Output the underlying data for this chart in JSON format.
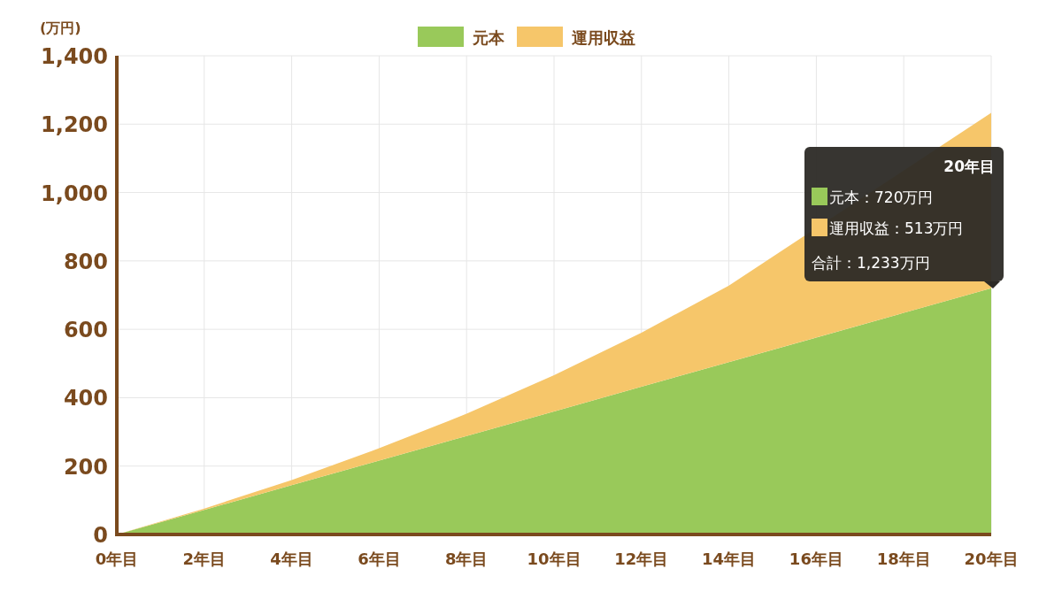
{
  "chart_data": {
    "type": "area",
    "stacked": true,
    "ylabel": "(万円)",
    "categories": [
      "0年目",
      "2年目",
      "4年目",
      "6年目",
      "8年目",
      "10年目",
      "12年目",
      "14年目",
      "16年目",
      "18年目",
      "20年目"
    ],
    "series": [
      {
        "name": "元本",
        "color": "#99c95a",
        "values": [
          0,
          72,
          144,
          216,
          288,
          360,
          432,
          504,
          576,
          648,
          720
        ]
      },
      {
        "name": "運用収益",
        "color": "#f6c66a",
        "values": [
          0,
          4,
          15,
          36,
          65,
          106,
          158,
          224,
          null,
          null,
          513
        ]
      }
    ],
    "ylim": [
      0,
      1400
    ],
    "yticks": [
      0,
      {
        "value": 200,
        "label": "200"
      },
      {
        "value": 400,
        "label": "400"
      },
      {
        "value": 600,
        "label": "600"
      },
      {
        "value": 800,
        "label": "800"
      },
      {
        "value": 1000,
        "label": "1,000"
      },
      {
        "value": 1200,
        "label": "1,200"
      },
      {
        "value": 1400,
        "label": "1,400"
      }
    ],
    "grid": true,
    "legend": "top",
    "annotations": [
      "20年目",
      "元本：720万円",
      "運用収益：513万円",
      "合計：1,233万円"
    ]
  }
}
